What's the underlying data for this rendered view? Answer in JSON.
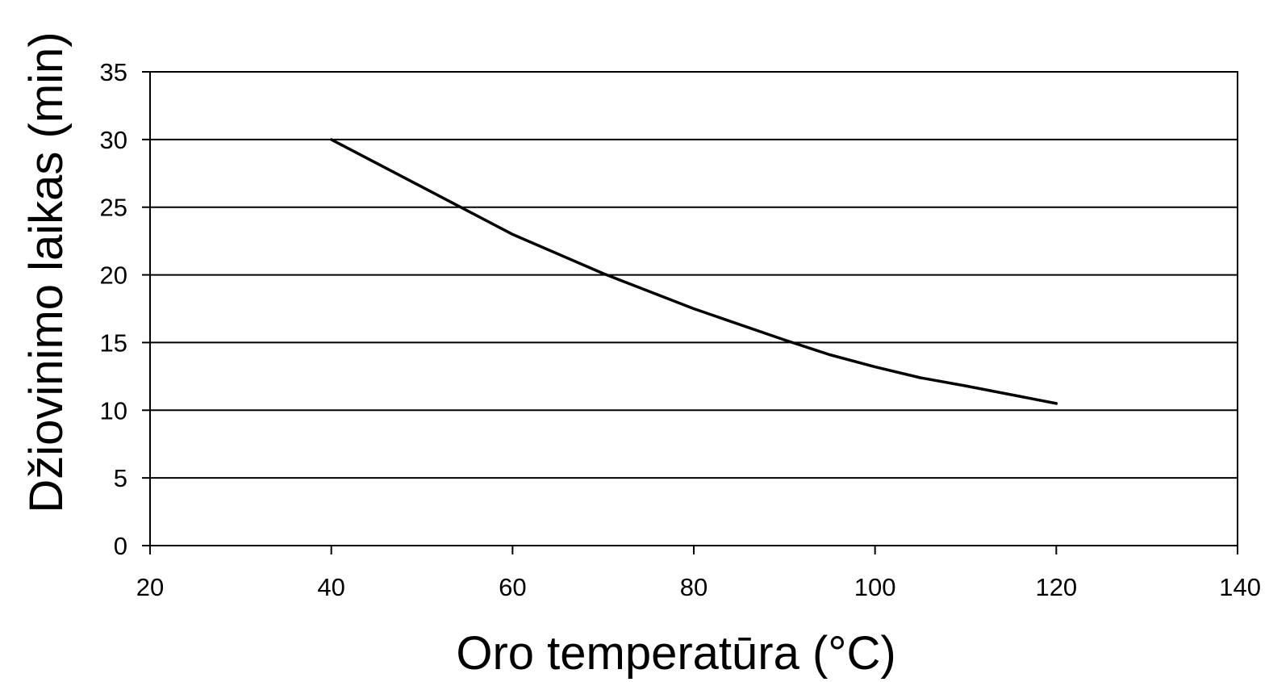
{
  "chart_data": {
    "type": "line",
    "title": "",
    "xlabel": "Oro temperatūra (°C)",
    "ylabel": "Džiovinimo laikas (min)",
    "xlim": [
      20,
      140
    ],
    "ylim": [
      0,
      35
    ],
    "xticks": [
      20,
      40,
      60,
      80,
      100,
      120,
      140
    ],
    "yticks": [
      0,
      5,
      10,
      15,
      20,
      25,
      30,
      35
    ],
    "grid": "horizontal",
    "legend": "none",
    "series": [
      {
        "color": "#000000",
        "x": [
          40,
          50,
          60,
          70,
          80,
          90,
          95,
          100,
          105,
          110,
          120
        ],
        "y": [
          30,
          26.5,
          23,
          20.1,
          17.5,
          15.2,
          14.1,
          13.2,
          12.4,
          11.8,
          10.5
        ]
      }
    ]
  }
}
